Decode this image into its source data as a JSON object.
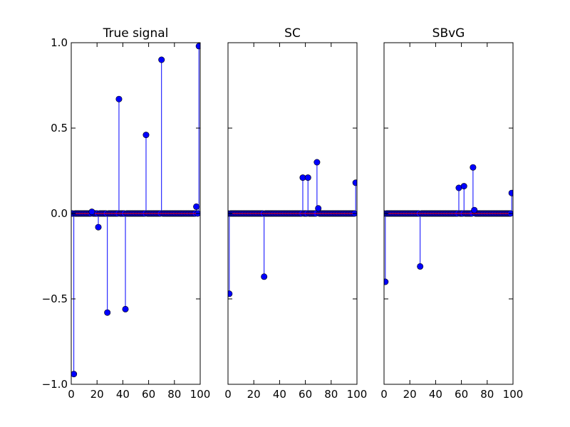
{
  "colors": {
    "stem": "#0000ff",
    "marker": "#0000ff",
    "baseline": "#ff0000",
    "axes": "#000000",
    "background": "#ffffff"
  },
  "chart_data": [
    {
      "type": "stem",
      "title": "True signal",
      "xlabel": "",
      "ylabel": "",
      "xlim": [
        0,
        100
      ],
      "ylim": [
        -1.0,
        1.0
      ],
      "xticks": [
        0,
        20,
        40,
        60,
        80,
        100
      ],
      "xtick_labels": [
        "0",
        "20",
        "40",
        "60",
        "80",
        "100"
      ],
      "yticks": [
        1.0,
        0.5,
        0.0,
        -0.5,
        -1.0
      ],
      "ytick_labels": [
        "1.0",
        "0.5",
        "0.0",
        "−0.5",
        "−1.0"
      ],
      "grid": false,
      "n_samples": 100,
      "nonzero": [
        {
          "x": 2,
          "y": -0.94
        },
        {
          "x": 16,
          "y": 0.01
        },
        {
          "x": 21,
          "y": -0.08
        },
        {
          "x": 28,
          "y": -0.58
        },
        {
          "x": 37,
          "y": 0.67
        },
        {
          "x": 42,
          "y": -0.56
        },
        {
          "x": 58,
          "y": 0.46
        },
        {
          "x": 70,
          "y": 0.9
        },
        {
          "x": 97,
          "y": 0.04
        },
        {
          "x": 99,
          "y": 0.98
        }
      ]
    },
    {
      "type": "stem",
      "title": "SC",
      "xlabel": "",
      "ylabel": "",
      "xlim": [
        0,
        100
      ],
      "ylim": [
        -1.0,
        1.0
      ],
      "xticks": [
        0,
        20,
        40,
        60,
        80,
        100
      ],
      "xtick_labels": [
        "0",
        "20",
        "40",
        "60",
        "80",
        "100"
      ],
      "yticks": [
        1.0,
        0.5,
        0.0,
        -0.5,
        -1.0
      ],
      "ytick_labels": [],
      "grid": false,
      "n_samples": 100,
      "nonzero": [
        {
          "x": 1,
          "y": -0.47
        },
        {
          "x": 28,
          "y": -0.37
        },
        {
          "x": 58,
          "y": 0.21
        },
        {
          "x": 62,
          "y": 0.21
        },
        {
          "x": 69,
          "y": 0.3
        },
        {
          "x": 70,
          "y": 0.03
        },
        {
          "x": 99,
          "y": 0.18
        }
      ]
    },
    {
      "type": "stem",
      "title": "SBvG",
      "xlabel": "",
      "ylabel": "",
      "xlim": [
        0,
        100
      ],
      "ylim": [
        -1.0,
        1.0
      ],
      "xticks": [
        0,
        20,
        40,
        60,
        80,
        100
      ],
      "xtick_labels": [
        "0",
        "20",
        "40",
        "60",
        "80",
        "100"
      ],
      "yticks": [
        1.0,
        0.5,
        0.0,
        -0.5,
        -1.0
      ],
      "ytick_labels": [],
      "grid": false,
      "n_samples": 100,
      "nonzero": [
        {
          "x": 1,
          "y": -0.4
        },
        {
          "x": 28,
          "y": -0.31
        },
        {
          "x": 58,
          "y": 0.15
        },
        {
          "x": 62,
          "y": 0.16
        },
        {
          "x": 69,
          "y": 0.27
        },
        {
          "x": 70,
          "y": 0.02
        },
        {
          "x": 99,
          "y": 0.12
        }
      ]
    }
  ]
}
